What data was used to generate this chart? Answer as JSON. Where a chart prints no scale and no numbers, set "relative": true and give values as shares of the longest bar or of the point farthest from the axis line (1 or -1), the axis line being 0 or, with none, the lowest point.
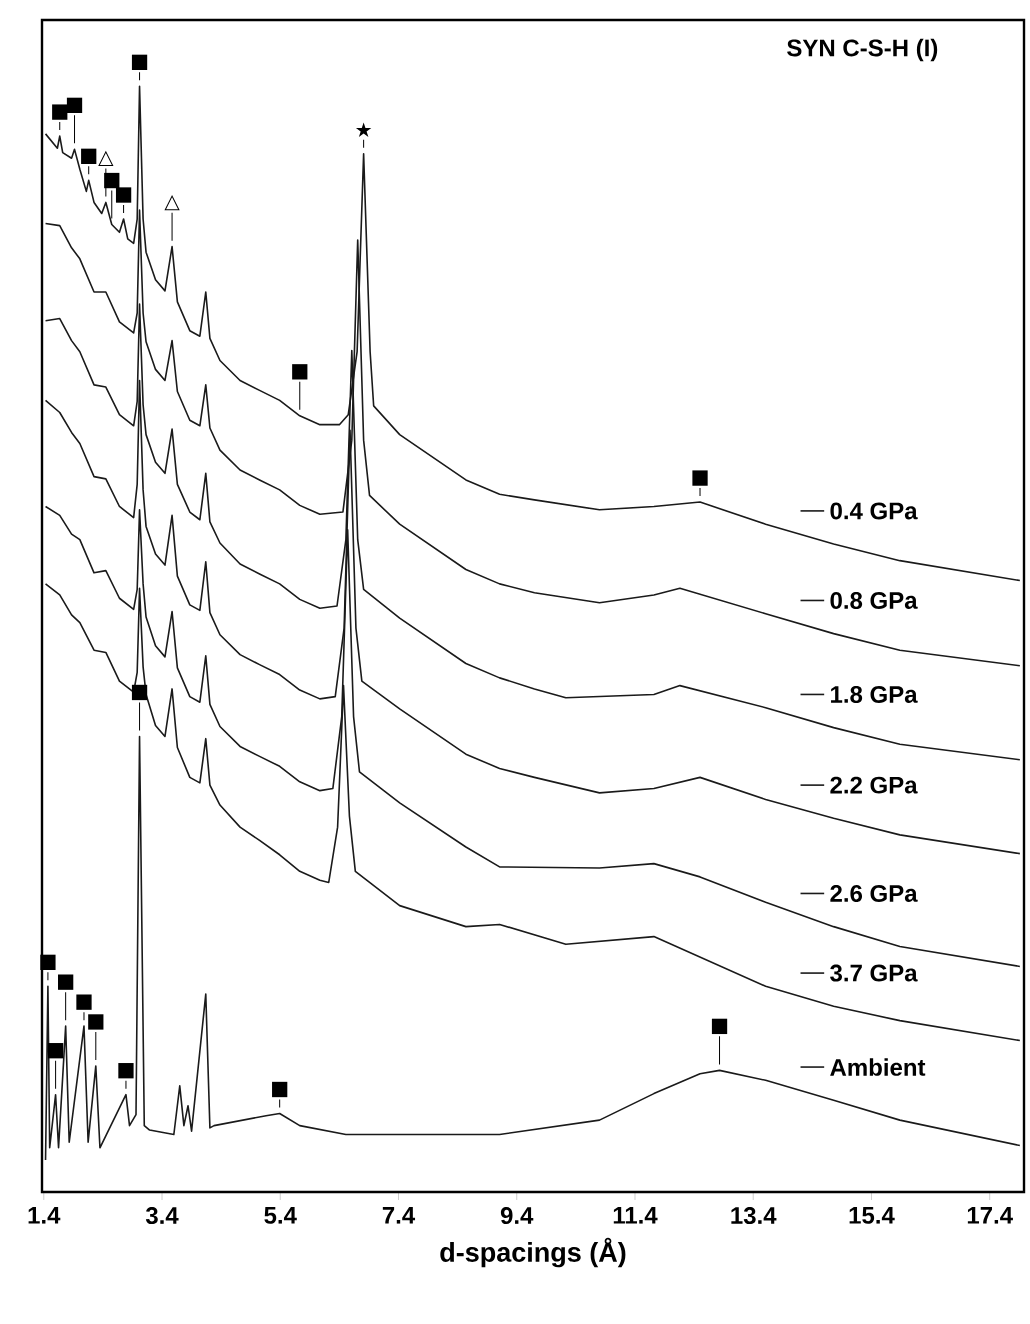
{
  "chart_data": {
    "type": "line",
    "relative": true,
    "title": "SYN C-S-H (I)",
    "xlabel": "d-spacings (Å)",
    "xlim": [
      1.37,
      17.98
    ],
    "xticks": [
      1.4,
      3.4,
      5.4,
      7.4,
      9.4,
      11.4,
      13.4,
      15.4,
      17.4
    ],
    "grid": false,
    "legend": "right",
    "line_style": "solid",
    "series": [
      {
        "name": "0.4 GPa",
        "color": "#1a1a1a",
        "x": [
          1.43,
          1.63,
          1.67,
          1.72,
          1.87,
          1.92,
          2.01,
          2.12,
          2.16,
          2.25,
          2.38,
          2.45,
          2.55,
          2.68,
          2.75,
          2.82,
          2.92,
          2.98,
          3.02,
          3.08,
          3.13,
          3.29,
          3.45,
          3.57,
          3.66,
          3.87,
          4.04,
          4.14,
          4.21,
          4.38,
          4.72,
          5.05,
          5.39,
          5.73,
          6.07,
          6.4,
          6.55,
          6.7,
          6.81,
          6.92,
          6.98,
          7.42,
          8.54,
          9.11,
          9.7,
          10.8,
          11.72,
          12.5,
          13.61,
          14.76,
          15.88,
          17.91
        ],
        "values": [
          0.957,
          0.944,
          0.955,
          0.94,
          0.935,
          0.943,
          0.925,
          0.905,
          0.915,
          0.895,
          0.885,
          0.895,
          0.875,
          0.868,
          0.88,
          0.862,
          0.858,
          0.88,
          1.0,
          0.88,
          0.85,
          0.825,
          0.815,
          0.855,
          0.805,
          0.779,
          0.774,
          0.814,
          0.772,
          0.752,
          0.734,
          0.725,
          0.716,
          0.702,
          0.694,
          0.694,
          0.703,
          0.76,
          0.939,
          0.76,
          0.711,
          0.685,
          0.644,
          0.631,
          0.626,
          0.617,
          0.62,
          0.624,
          0.604,
          0.586,
          0.571,
          0.553
        ]
      },
      {
        "name": "0.8 GPa",
        "color": "#1a1a1a",
        "x": [
          1.43,
          1.67,
          1.87,
          2.01,
          2.25,
          2.45,
          2.68,
          2.92,
          2.98,
          3.02,
          3.08,
          3.13,
          3.29,
          3.45,
          3.57,
          3.66,
          3.87,
          4.04,
          4.14,
          4.21,
          4.38,
          4.72,
          5.05,
          5.39,
          5.73,
          6.07,
          6.46,
          6.61,
          6.71,
          6.81,
          6.91,
          7.42,
          8.54,
          9.11,
          9.7,
          10.8,
          11.72,
          12.16,
          13.61,
          14.76,
          15.88,
          17.91
        ],
        "values": [
          0.876,
          0.874,
          0.854,
          0.844,
          0.814,
          0.814,
          0.787,
          0.777,
          0.795,
          0.888,
          0.795,
          0.769,
          0.744,
          0.734,
          0.77,
          0.724,
          0.698,
          0.693,
          0.73,
          0.691,
          0.671,
          0.653,
          0.644,
          0.635,
          0.621,
          0.613,
          0.615,
          0.68,
          0.861,
          0.68,
          0.63,
          0.604,
          0.563,
          0.55,
          0.542,
          0.533,
          0.54,
          0.546,
          0.523,
          0.505,
          0.49,
          0.476
        ]
      },
      {
        "name": "1.8 GPa",
        "color": "#1a1a1a",
        "x": [
          1.43,
          1.67,
          1.87,
          2.01,
          2.25,
          2.45,
          2.68,
          2.92,
          2.98,
          3.02,
          3.08,
          3.13,
          3.29,
          3.45,
          3.57,
          3.66,
          3.87,
          4.04,
          4.14,
          4.21,
          4.38,
          4.72,
          5.05,
          5.39,
          5.73,
          6.07,
          6.36,
          6.51,
          6.61,
          6.71,
          6.81,
          7.42,
          8.54,
          9.11,
          9.7,
          10.23,
          11.72,
          12.16,
          13.61,
          14.76,
          15.88,
          17.91
        ],
        "values": [
          0.788,
          0.79,
          0.77,
          0.76,
          0.73,
          0.728,
          0.703,
          0.693,
          0.715,
          0.803,
          0.712,
          0.685,
          0.66,
          0.65,
          0.69,
          0.64,
          0.615,
          0.608,
          0.65,
          0.606,
          0.587,
          0.568,
          0.559,
          0.55,
          0.536,
          0.528,
          0.53,
          0.59,
          0.761,
          0.59,
          0.545,
          0.519,
          0.478,
          0.465,
          0.455,
          0.447,
          0.45,
          0.458,
          0.438,
          0.42,
          0.405,
          0.391
        ]
      },
      {
        "name": "2.2 GPa",
        "color": "#1a1a1a",
        "x": [
          1.43,
          1.67,
          1.87,
          2.01,
          2.25,
          2.45,
          2.68,
          2.92,
          2.98,
          3.02,
          3.08,
          3.13,
          3.29,
          3.45,
          3.57,
          3.66,
          3.87,
          4.04,
          4.14,
          4.21,
          4.38,
          4.72,
          5.05,
          5.39,
          5.73,
          6.07,
          6.33,
          6.48,
          6.58,
          6.68,
          6.78,
          7.42,
          8.54,
          9.11,
          9.7,
          10.8,
          11.72,
          12.5,
          13.61,
          14.76,
          15.88,
          17.91
        ],
        "values": [
          0.716,
          0.705,
          0.687,
          0.677,
          0.647,
          0.645,
          0.62,
          0.61,
          0.64,
          0.734,
          0.635,
          0.602,
          0.577,
          0.567,
          0.612,
          0.557,
          0.531,
          0.526,
          0.57,
          0.524,
          0.504,
          0.486,
          0.477,
          0.468,
          0.454,
          0.446,
          0.448,
          0.51,
          0.689,
          0.51,
          0.462,
          0.437,
          0.396,
          0.383,
          0.375,
          0.361,
          0.365,
          0.375,
          0.355,
          0.338,
          0.323,
          0.306
        ]
      },
      {
        "name": "2.6 GPa",
        "color": "#1a1a1a",
        "x": [
          1.43,
          1.67,
          1.87,
          2.01,
          2.25,
          2.45,
          2.68,
          2.92,
          2.98,
          3.02,
          3.08,
          3.13,
          3.29,
          3.45,
          3.57,
          3.66,
          3.87,
          4.04,
          4.14,
          4.21,
          4.38,
          4.72,
          5.05,
          5.39,
          5.73,
          6.07,
          6.29,
          6.44,
          6.54,
          6.64,
          6.74,
          7.42,
          8.54,
          9.11,
          10.8,
          11.72,
          12.5,
          13.61,
          14.76,
          15.88,
          17.91
        ],
        "values": [
          0.62,
          0.612,
          0.595,
          0.59,
          0.56,
          0.562,
          0.537,
          0.527,
          0.545,
          0.617,
          0.55,
          0.52,
          0.494,
          0.484,
          0.525,
          0.474,
          0.448,
          0.443,
          0.485,
          0.441,
          0.421,
          0.403,
          0.394,
          0.385,
          0.371,
          0.363,
          0.365,
          0.43,
          0.599,
          0.43,
          0.38,
          0.352,
          0.312,
          0.294,
          0.293,
          0.297,
          0.285,
          0.262,
          0.24,
          0.222,
          0.204
        ]
      },
      {
        "name": "3.7 GPa",
        "color": "#1a1a1a",
        "x": [
          1.43,
          1.67,
          1.87,
          2.01,
          2.25,
          2.45,
          2.68,
          2.92,
          2.98,
          3.02,
          3.08,
          3.13,
          3.29,
          3.45,
          3.57,
          3.66,
          3.87,
          4.04,
          4.14,
          4.21,
          4.38,
          4.72,
          5.05,
          5.39,
          5.73,
          6.07,
          6.22,
          6.37,
          6.47,
          6.57,
          6.67,
          7.42,
          8.54,
          9.11,
          10.23,
          11.72,
          13.61,
          14.76,
          15.88,
          17.91
        ],
        "values": [
          0.55,
          0.54,
          0.522,
          0.515,
          0.49,
          0.488,
          0.462,
          0.452,
          0.47,
          0.546,
          0.475,
          0.45,
          0.422,
          0.412,
          0.455,
          0.402,
          0.375,
          0.37,
          0.41,
          0.368,
          0.35,
          0.33,
          0.318,
          0.305,
          0.29,
          0.282,
          0.28,
          0.33,
          0.458,
          0.34,
          0.29,
          0.259,
          0.24,
          0.242,
          0.224,
          0.231,
          0.186,
          0.168,
          0.155,
          0.137
        ]
      },
      {
        "name": "Ambient",
        "color": "#1a1a1a",
        "x": [
          1.43,
          1.47,
          1.5,
          1.6,
          1.65,
          1.77,
          1.83,
          2.08,
          2.15,
          2.28,
          2.35,
          2.79,
          2.85,
          2.96,
          3.02,
          3.1,
          3.19,
          3.6,
          3.7,
          3.77,
          3.84,
          3.9,
          4.14,
          4.21,
          4.28,
          5.16,
          5.39,
          5.73,
          6.51,
          9.11,
          10.8,
          11.72,
          12.5,
          12.83,
          13.61,
          14.76,
          15.88,
          17.91
        ],
        "values": [
          0.029,
          0.186,
          0.04,
          0.088,
          0.04,
          0.15,
          0.045,
          0.15,
          0.045,
          0.114,
          0.04,
          0.088,
          0.06,
          0.07,
          0.412,
          0.06,
          0.056,
          0.052,
          0.096,
          0.06,
          0.078,
          0.055,
          0.179,
          0.058,
          0.06,
          0.069,
          0.071,
          0.06,
          0.052,
          0.052,
          0.065,
          0.089,
          0.107,
          0.11,
          0.101,
          0.083,
          0.065,
          0.042
        ]
      }
    ],
    "annotations": [
      {
        "text": "■",
        "x": 1.67,
        "y": 0.955
      },
      {
        "text": "■",
        "x": 1.92,
        "y": 0.943
      },
      {
        "text": "■",
        "x": 2.16,
        "y": 0.915
      },
      {
        "text": "△",
        "x": 2.45,
        "y": 0.895
      },
      {
        "text": "■",
        "x": 2.75,
        "y": 0.88
      },
      {
        "text": "■",
        "x": 2.55,
        "y": 0.875
      },
      {
        "text": "■",
        "x": 3.02,
        "y": 1.0
      },
      {
        "text": "△",
        "x": 3.57,
        "y": 0.855
      },
      {
        "text": "★",
        "x": 6.81,
        "y": 0.939
      },
      {
        "text": "■",
        "x": 5.73,
        "y": 0.702
      },
      {
        "text": "■",
        "x": 12.5,
        "y": 0.624
      },
      {
        "text": "■",
        "x": 3.02,
        "y": 0.412
      },
      {
        "text": "■",
        "x": 1.47,
        "y": 0.186
      },
      {
        "text": "■",
        "x": 1.77,
        "y": 0.15
      },
      {
        "text": "■",
        "x": 2.08,
        "y": 0.15
      },
      {
        "text": "■",
        "x": 2.28,
        "y": 0.114
      },
      {
        "text": "■",
        "x": 2.79,
        "y": 0.088
      },
      {
        "text": "■",
        "x": 1.6,
        "y": 0.088
      },
      {
        "text": "■",
        "x": 5.39,
        "y": 0.071
      },
      {
        "text": "■",
        "x": 12.83,
        "y": 0.11
      }
    ]
  }
}
